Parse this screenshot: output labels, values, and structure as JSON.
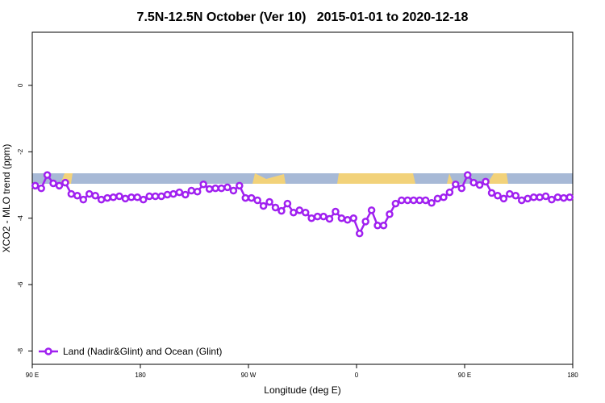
{
  "chart_data": {
    "type": "line",
    "title": "7.5N-12.5N October (Ver 10)   2015-01-01 to 2020-12-18",
    "x_label": "Longitude (deg E)",
    "y_label": "XCO2 - MLO trend (ppm)",
    "x": [
      92.5,
      97.5,
      102.5,
      107.5,
      112.5,
      117.5,
      122.5,
      127.5,
      132.5,
      137.5,
      142.5,
      147.5,
      152.5,
      157.5,
      162.5,
      167.5,
      172.5,
      177.5,
      182.5,
      187.5,
      192.5,
      197.5,
      202.5,
      207.5,
      212.5,
      217.5,
      222.5,
      227.5,
      232.5,
      237.5,
      242.5,
      247.5,
      252.5,
      257.5,
      262.5,
      267.5,
      272.5,
      277.5,
      282.5,
      287.5,
      292.5,
      297.5,
      302.5,
      307.5,
      312.5,
      317.5,
      322.5,
      327.5,
      332.5,
      337.5,
      342.5,
      347.5,
      352.5,
      357.5,
      362.5,
      367.5,
      372.5,
      377.5,
      382.5,
      387.5,
      392.5,
      397.5,
      402.5,
      407.5,
      412.5,
      417.5,
      422.5,
      427.5,
      432.5,
      437.5,
      442.5,
      447.5,
      452.5,
      457.5,
      462.5,
      467.5,
      472.5,
      477.5,
      482.5,
      487.5,
      492.5,
      497.5,
      502.5,
      507.5,
      512.5,
      517.5,
      522.5,
      527.5,
      532.5,
      537.5
    ],
    "series": [
      {
        "name": "Land (Nadir&Glint) and Ocean (Glint)",
        "color": "#a020f0",
        "values": [
          -3.02,
          -3.1,
          -2.7,
          -2.95,
          -3.02,
          -2.93,
          -3.27,
          -3.32,
          -3.44,
          -3.27,
          -3.32,
          -3.44,
          -3.39,
          -3.37,
          -3.34,
          -3.41,
          -3.37,
          -3.37,
          -3.44,
          -3.34,
          -3.34,
          -3.34,
          -3.29,
          -3.27,
          -3.22,
          -3.29,
          -3.17,
          -3.2,
          -2.98,
          -3.12,
          -3.1,
          -3.1,
          -3.07,
          -3.17,
          -3.02,
          -3.39,
          -3.39,
          -3.46,
          -3.63,
          -3.51,
          -3.68,
          -3.78,
          -3.56,
          -3.83,
          -3.76,
          -3.83,
          -4.0,
          -3.95,
          -3.95,
          -4.02,
          -3.8,
          -4.0,
          -4.05,
          -4.0,
          -4.46,
          -4.1,
          -3.76,
          -4.22,
          -4.22,
          -3.88,
          -3.56,
          -3.46,
          -3.46,
          -3.46,
          -3.46,
          -3.46,
          -3.54,
          -3.41,
          -3.37,
          -3.22,
          -2.98,
          -3.1,
          -2.7,
          -2.93,
          -3.0,
          -2.9,
          -3.24,
          -3.32,
          -3.41,
          -3.27,
          -3.32,
          -3.46,
          -3.41,
          -3.37,
          -3.37,
          -3.34,
          -3.44,
          -3.37,
          -3.39,
          -3.37
        ]
      }
    ],
    "xlim": [
      90,
      540
    ],
    "xticks": [
      {
        "value": 90,
        "label": "90 E"
      },
      180,
      {
        "value": 270,
        "label": "90 W"
      },
      {
        "value": 360,
        "label": "0"
      },
      {
        "value": 450,
        "label": "90 E"
      },
      {
        "value": 540,
        "label": "180"
      }
    ],
    "ylim": [
      -8.4,
      1.6
    ],
    "yticks": [
      0,
      -2,
      -4,
      -6,
      -8
    ],
    "legend": "bottom-left"
  }
}
